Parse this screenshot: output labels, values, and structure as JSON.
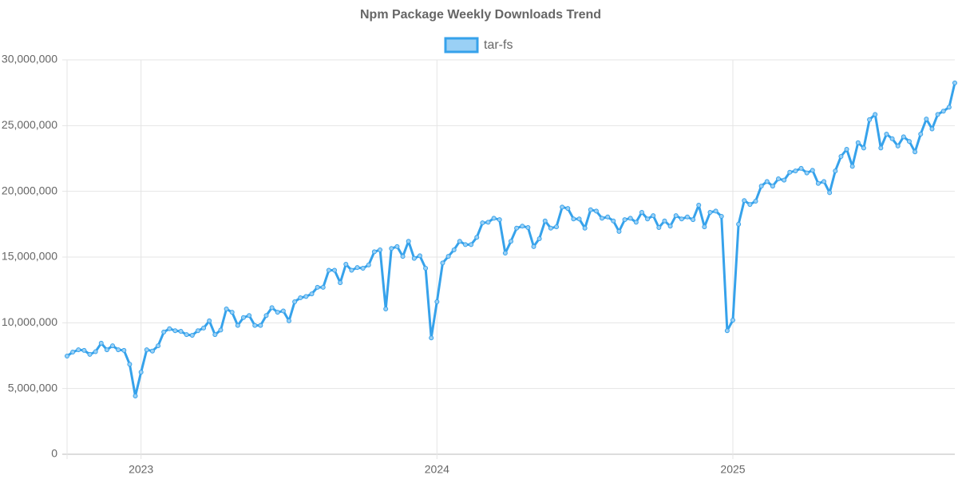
{
  "chart_data": {
    "type": "line",
    "title": "Npm Package Weekly Downloads Trend",
    "categories": [
      null,
      null,
      null,
      null,
      null,
      null,
      null,
      null,
      null,
      null,
      null,
      null,
      null,
      "2023",
      null,
      null,
      null,
      null,
      null,
      null,
      null,
      null,
      null,
      null,
      null,
      null,
      null,
      null,
      null,
      null,
      null,
      null,
      null,
      null,
      null,
      null,
      null,
      null,
      null,
      null,
      null,
      null,
      null,
      null,
      null,
      null,
      null,
      null,
      null,
      null,
      null,
      null,
      null,
      null,
      null,
      null,
      null,
      null,
      null,
      null,
      null,
      null,
      null,
      null,
      null,
      "2024",
      null,
      null,
      null,
      null,
      null,
      null,
      null,
      null,
      null,
      null,
      null,
      null,
      null,
      null,
      null,
      null,
      null,
      null,
      null,
      null,
      null,
      null,
      null,
      null,
      null,
      null,
      null,
      null,
      null,
      null,
      null,
      null,
      null,
      null,
      null,
      null,
      null,
      null,
      null,
      null,
      null,
      null,
      null,
      null,
      null,
      null,
      null,
      null,
      null,
      null,
      null,
      "2025",
      null,
      null,
      null,
      null,
      null,
      null,
      null,
      null,
      null,
      null,
      null,
      null,
      null,
      null,
      null,
      null,
      null,
      null,
      null,
      null,
      null,
      null,
      null,
      null,
      null,
      null,
      null,
      null,
      null,
      null,
      null,
      null,
      null,
      null,
      null,
      null,
      null,
      null,
      null
    ],
    "series": [
      {
        "name": "tar-fs",
        "color": "#36a2eb",
        "fill": "#9ad0f5",
        "values": [
          7470000,
          7770000,
          7950000,
          7900000,
          7600000,
          7800000,
          8450000,
          7950000,
          8250000,
          7950000,
          7900000,
          6850000,
          4430000,
          6250000,
          7950000,
          7850000,
          8250000,
          9300000,
          9550000,
          9400000,
          9350000,
          9100000,
          9050000,
          9400000,
          9600000,
          10150000,
          9100000,
          9450000,
          11050000,
          10800000,
          9800000,
          10400000,
          10550000,
          9800000,
          9800000,
          10550000,
          11150000,
          10800000,
          10900000,
          10150000,
          11600000,
          11900000,
          12000000,
          12200000,
          12700000,
          12700000,
          14000000,
          14000000,
          13050000,
          14450000,
          14000000,
          14200000,
          14150000,
          14400000,
          15400000,
          15550000,
          11050000,
          15650000,
          15800000,
          15050000,
          16200000,
          14900000,
          15100000,
          14150000,
          8850000,
          11600000,
          14550000,
          15050000,
          15550000,
          16200000,
          15950000,
          15950000,
          16500000,
          17600000,
          17650000,
          17950000,
          17850000,
          15300000,
          16200000,
          17200000,
          17350000,
          17250000,
          15800000,
          16400000,
          17750000,
          17200000,
          17300000,
          18800000,
          18700000,
          17900000,
          17900000,
          17200000,
          18600000,
          18500000,
          17950000,
          18050000,
          17750000,
          16950000,
          17850000,
          17950000,
          17650000,
          18400000,
          17900000,
          18150000,
          17250000,
          17750000,
          17350000,
          18150000,
          17900000,
          18050000,
          17850000,
          18950000,
          17300000,
          18400000,
          18500000,
          18100000,
          9400000,
          10200000,
          17500000,
          19300000,
          19000000,
          19250000,
          20400000,
          20750000,
          20400000,
          20950000,
          20850000,
          21450000,
          21550000,
          21750000,
          21400000,
          21600000,
          20600000,
          20750000,
          19900000,
          21550000,
          22650000,
          23200000,
          21900000,
          23700000,
          23300000,
          25450000,
          25850000,
          23300000,
          24350000,
          24000000,
          23450000,
          24150000,
          23800000,
          23000000,
          24350000,
          25500000,
          24750000,
          25850000,
          26100000,
          26400000,
          28250000
        ]
      }
    ],
    "ylim": [
      0,
      30000000
    ],
    "yticks": [
      0,
      {
        "value": 5000000,
        "label": "5,000,000"
      },
      {
        "value": 10000000,
        "label": "10,000,000"
      },
      {
        "value": 15000000,
        "label": "15,000,000"
      },
      {
        "value": 20000000,
        "label": "20,000,000"
      },
      {
        "value": 25000000,
        "label": "25,000,000"
      },
      {
        "value": 30000000,
        "label": "30,000,000"
      }
    ],
    "grid": true,
    "legend": "top"
  }
}
